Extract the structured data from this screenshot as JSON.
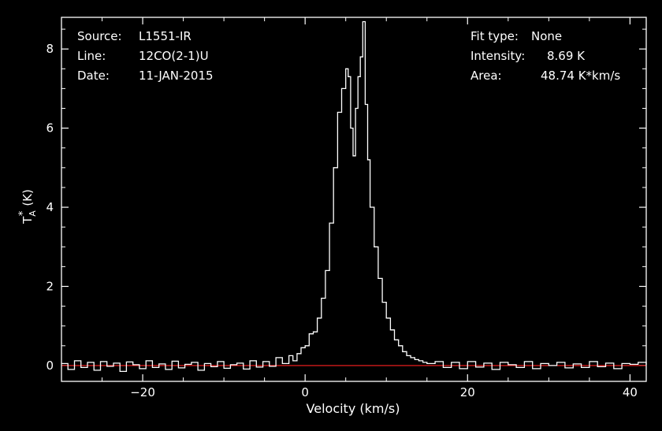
{
  "chart_data": {
    "type": "line",
    "style": "step",
    "xlabel": "Velocity (km/s)",
    "ylabel": "T",
    "ylabel_sub": "A",
    "ylabel_sup": "*",
    "ylabel_unit": "(K)",
    "xlim": [
      -30,
      42
    ],
    "ylim": [
      -0.4,
      8.8
    ],
    "xticks": [
      -20,
      0,
      20,
      40
    ],
    "yticks": [
      0,
      2,
      4,
      6,
      8
    ],
    "xtick_labels": [
      "−20",
      "0",
      "20",
      "40"
    ],
    "ytick_labels": [
      "0",
      "2",
      "4",
      "6",
      "8"
    ],
    "baseline": 0,
    "colors": {
      "spectrum": "#ffffff",
      "baseline": "#ff2020",
      "frame": "#ffffff",
      "background": "#000000"
    },
    "info_left": [
      {
        "label": "Source:",
        "value": "L1551-IR"
      },
      {
        "label": "Line:",
        "value": "12CO(2-1)U"
      },
      {
        "label": "Date:",
        "value": "11-JAN-2015"
      }
    ],
    "info_right": [
      {
        "label": "Fit type:",
        "value": "None"
      },
      {
        "label": "Intensity:",
        "value": "8.69 K"
      },
      {
        "label": "Area:",
        "value": "48.74 K*km/s"
      }
    ],
    "series": [
      {
        "x": [
          -30.0,
          -29.2,
          -28.4,
          -27.6,
          -26.8,
          -26.0,
          -25.2,
          -24.4,
          -23.6,
          -22.8,
          -22.0,
          -21.2,
          -20.4,
          -19.6,
          -18.8,
          -18.0,
          -17.2,
          -16.4,
          -15.6,
          -14.8,
          -14.0,
          -13.2,
          -12.4,
          -11.6,
          -10.8,
          -10.0,
          -9.2,
          -8.4,
          -7.6,
          -6.8,
          -6.0,
          -5.2,
          -4.4,
          -3.6,
          -2.8,
          -2.0,
          -1.5,
          -1.0,
          -0.5,
          0.0,
          0.5,
          1.0,
          1.5,
          2.0,
          2.5,
          3.0,
          3.5,
          4.0,
          4.5,
          5.0,
          5.3,
          5.6,
          5.9,
          6.2,
          6.5,
          6.8,
          7.1,
          7.4,
          7.7,
          8.0,
          8.5,
          9.0,
          9.5,
          10.0,
          10.5,
          11.0,
          11.5,
          12.0,
          12.5,
          13.0,
          13.5,
          14.0,
          14.5,
          15.0,
          16.0,
          17.0,
          18.0,
          19.0,
          20.0,
          21.0,
          22.0,
          23.0,
          24.0,
          25.0,
          26.0,
          27.0,
          28.0,
          29.0,
          30.0,
          31.0,
          32.0,
          33.0,
          34.0,
          35.0,
          36.0,
          37.0,
          38.0,
          39.0,
          40.0,
          41.0,
          42.0
        ],
        "y": [
          0.05,
          -0.1,
          0.12,
          -0.05,
          0.08,
          -0.12,
          0.1,
          -0.02,
          0.06,
          -0.15,
          0.09,
          0.02,
          -0.08,
          0.12,
          -0.05,
          0.04,
          -0.1,
          0.11,
          -0.06,
          0.03,
          0.08,
          -0.12,
          0.05,
          -0.03,
          0.1,
          -0.07,
          0.02,
          0.06,
          -0.09,
          0.12,
          -0.04,
          0.1,
          -0.02,
          0.2,
          0.05,
          0.25,
          0.12,
          0.3,
          0.45,
          0.5,
          0.8,
          0.85,
          1.2,
          1.7,
          2.4,
          3.6,
          5.0,
          6.4,
          7.0,
          7.5,
          7.3,
          6.0,
          5.3,
          6.5,
          7.3,
          7.8,
          8.69,
          6.6,
          5.2,
          4.0,
          3.0,
          2.2,
          1.6,
          1.2,
          0.9,
          0.65,
          0.5,
          0.35,
          0.25,
          0.2,
          0.15,
          0.12,
          0.08,
          0.05,
          0.1,
          -0.05,
          0.08,
          -0.08,
          0.1,
          -0.04,
          0.06,
          -0.1,
          0.08,
          0.02,
          -0.05,
          0.1,
          -0.08,
          0.05,
          0.0,
          0.08,
          -0.06,
          0.04,
          -0.05,
          0.1,
          -0.03,
          0.06,
          -0.08,
          0.05,
          0.03,
          0.08,
          0.02
        ]
      }
    ]
  }
}
